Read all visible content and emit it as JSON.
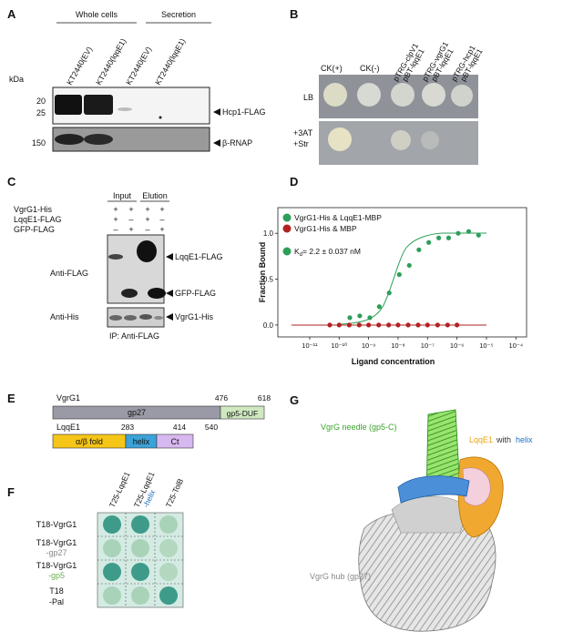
{
  "panel_a": {
    "label": "A",
    "groups": [
      "Whole cells",
      "Secretion"
    ],
    "kda": "kDa",
    "lanes": [
      "KT2440(EV)",
      "KT2440(lqqE1)",
      "KT2440(EV)",
      "KT2440(lqqE1)"
    ],
    "markers": [
      "20",
      "25",
      "150"
    ],
    "bands": [
      "Hcp1-FLAG",
      "β-RNAP"
    ]
  },
  "panel_b": {
    "label": "B",
    "columns": [
      "CK(+)",
      "CK(-)",
      [
        "pTRG-clpV1",
        "pBT-lqqE1"
      ],
      [
        "pTRG-vgrG1",
        "pBT-lqqE1"
      ],
      [
        "pTRG-hcp1",
        "pBT-lqqE1"
      ]
    ],
    "rows": [
      "LB",
      [
        "+3AT",
        "+Str"
      ]
    ]
  },
  "panel_c": {
    "label": "C",
    "groups": [
      "Input",
      "Elution"
    ],
    "rows": [
      {
        "name": "VgrG1-His",
        "signs": [
          "+",
          "+",
          "+",
          "+"
        ]
      },
      {
        "name": "LqqE1-FLAG",
        "signs": [
          "+",
          "–",
          "+",
          "–"
        ]
      },
      {
        "name": "GFP-FLAG",
        "signs": [
          "–",
          "+",
          "–",
          "+"
        ]
      }
    ],
    "blots": [
      "Anti-FLAG",
      "Anti-His"
    ],
    "bands": [
      "LqqE1-FLAG",
      "GFP-FLAG",
      "VgrG1-His"
    ],
    "footer": "IP: Anti-FLAG"
  },
  "panel_d": {
    "label": "D",
    "chart_data": {
      "type": "scatter",
      "xscale": "log",
      "xlabel": "Ligand concentration",
      "ylabel": "Fraction Bound",
      "annotation": [
        "K",
        "d",
        "= 2.2 ± 0.037 nM"
      ],
      "xlim": [
        8.3e-13,
        0.00023
      ],
      "ylim": [
        -0.13,
        1.28
      ],
      "xticks": [
        {
          "value": 1e-11,
          "label": "10⁻¹¹"
        },
        {
          "value": 1e-10,
          "label": "10⁻¹⁰"
        },
        {
          "value": 1e-09,
          "label": "10⁻⁹"
        },
        {
          "value": 1e-08,
          "label": "10⁻⁸"
        },
        {
          "value": 1e-07,
          "label": "10⁻⁷"
        },
        {
          "value": 1e-06,
          "label": "10⁻⁶"
        },
        {
          "value": 1e-05,
          "label": "10⁻⁵"
        },
        {
          "value": 0.0001,
          "label": "10⁻⁴"
        }
      ],
      "yticks": [
        {
          "value": 0,
          "label": "0.0"
        },
        {
          "value": 0.5,
          "label": "0.5"
        },
        {
          "value": 1,
          "label": "1.0"
        }
      ],
      "series": [
        {
          "name": "VgrG1-His & LqqE1-MBP",
          "color": "#2e9e5a",
          "x": [
            2.3e-10,
            5e-10,
            1.1e-09,
            2.3e-09,
            5e-09,
            1.1e-08,
            2.4e-08,
            5.1e-08,
            1.1e-07,
            2.4e-07,
            5.2e-07,
            1.1e-06,
            2.5e-06,
            5.4e-06
          ],
          "values": [
            0.08,
            0.1,
            0.08,
            0.2,
            0.35,
            0.55,
            0.65,
            0.82,
            0.9,
            0.95,
            0.95,
            1.0,
            1.02,
            0.98
          ]
        },
        {
          "name": "VgrG1-His & MBP",
          "color": "#b22222",
          "x": [
            4.8e-11,
            1e-10,
            2.2e-10,
            4.8e-10,
            1e-09,
            2.2e-09,
            4.8e-09,
            1e-08,
            2.2e-08,
            4.8e-08,
            1e-07,
            2.2e-07,
            4.8e-07,
            1e-06
          ],
          "values": [
            0,
            0,
            0,
            0,
            0,
            0,
            0,
            0,
            0,
            0,
            0,
            0,
            0,
            0
          ]
        }
      ]
    }
  },
  "panel_e": {
    "label": "E",
    "proteins": [
      {
        "name": "VgrG1",
        "domains": [
          "gp27",
          "gp5-DUF"
        ],
        "positions": [
          "476",
          "618"
        ]
      },
      {
        "name": "LqqE1",
        "domains": [
          "α/β fold",
          "helix",
          "Ct"
        ],
        "positions": [
          "283",
          "414",
          "540"
        ]
      }
    ]
  },
  "panel_f": {
    "label": "F",
    "columns": [
      "T25-LqqE1",
      [
        "T25-LqqE1",
        "-helix"
      ],
      "T25-TolB"
    ],
    "rows": [
      [
        "T18-VgrG1"
      ],
      [
        "T18-VgrG1",
        "-gp27"
      ],
      [
        "T18-VgrG1",
        "-gp5"
      ],
      [
        "T18",
        "-Pal"
      ]
    ]
  },
  "panel_g": {
    "label": "G",
    "needle": "VgrG needle (gp5-C)",
    "lqqe1": [
      "LqqE1",
      "with",
      "helix"
    ],
    "hub": "VgrG hub (gp27)"
  }
}
